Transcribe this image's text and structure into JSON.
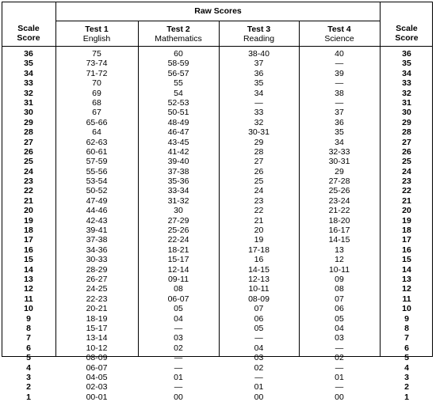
{
  "header": {
    "raw_scores": "Raw Scores",
    "scale_score_left": [
      "Scale",
      "Score"
    ],
    "scale_score_right": [
      "Scale",
      "Score"
    ],
    "tests": [
      {
        "name": "Test 1",
        "subject": "English"
      },
      {
        "name": "Test 2",
        "subject": "Mathematics"
      },
      {
        "name": "Test 3",
        "subject": "Reading"
      },
      {
        "name": "Test 4",
        "subject": "Science"
      }
    ]
  },
  "table": {
    "scale_scores": [
      "36",
      "35",
      "34",
      "33",
      "32",
      "31",
      "30",
      "29",
      "28",
      "27",
      "26",
      "25",
      "24",
      "23",
      "22",
      "21",
      "20",
      "19",
      "18",
      "17",
      "16",
      "15",
      "14",
      "13",
      "12",
      "11",
      "10",
      "9",
      "8",
      "7",
      "6",
      "5",
      "4",
      "3",
      "2",
      "1"
    ],
    "english": [
      "75",
      "73-74",
      "71-72",
      "70",
      "69",
      "68",
      "67",
      "65-66",
      "64",
      "62-63",
      "60-61",
      "57-59",
      "55-56",
      "53-54",
      "50-52",
      "47-49",
      "44-46",
      "42-43",
      "39-41",
      "37-38",
      "34-36",
      "30-33",
      "28-29",
      "26-27",
      "24-25",
      "22-23",
      "20-21",
      "18-19",
      "15-17",
      "13-14",
      "10-12",
      "08-09",
      "06-07",
      "04-05",
      "02-03",
      "00-01"
    ],
    "mathematics": [
      "60",
      "58-59",
      "56-57",
      "55",
      "54",
      "52-53",
      "50-51",
      "48-49",
      "46-47",
      "43-45",
      "41-42",
      "39-40",
      "37-38",
      "35-36",
      "33-34",
      "31-32",
      "30",
      "27-29",
      "25-26",
      "22-24",
      "18-21",
      "15-17",
      "12-14",
      "09-11",
      "08",
      "06-07",
      "05",
      "04",
      "—",
      "03",
      "02",
      "—",
      "—",
      "01",
      "—",
      "00"
    ],
    "reading": [
      "38-40",
      "37",
      "36",
      "35",
      "34",
      "—",
      "33",
      "32",
      "30-31",
      "29",
      "28",
      "27",
      "26",
      "25",
      "24",
      "23",
      "22",
      "21",
      "20",
      "19",
      "17-18",
      "16",
      "14-15",
      "12-13",
      "10-11",
      "08-09",
      "07",
      "06",
      "05",
      "—",
      "04",
      "03",
      "02",
      "—",
      "01",
      "00"
    ],
    "science": [
      "40",
      "—",
      "39",
      "—",
      "38",
      "—",
      "37",
      "36",
      "35",
      "34",
      "32-33",
      "30-31",
      "29",
      "27-28",
      "25-26",
      "23-24",
      "21-22",
      "18-20",
      "16-17",
      "14-15",
      "13",
      "12",
      "10-11",
      "09",
      "08",
      "07",
      "06",
      "05",
      "04",
      "03",
      "—",
      "02",
      "—",
      "01",
      "—",
      "00"
    ]
  }
}
